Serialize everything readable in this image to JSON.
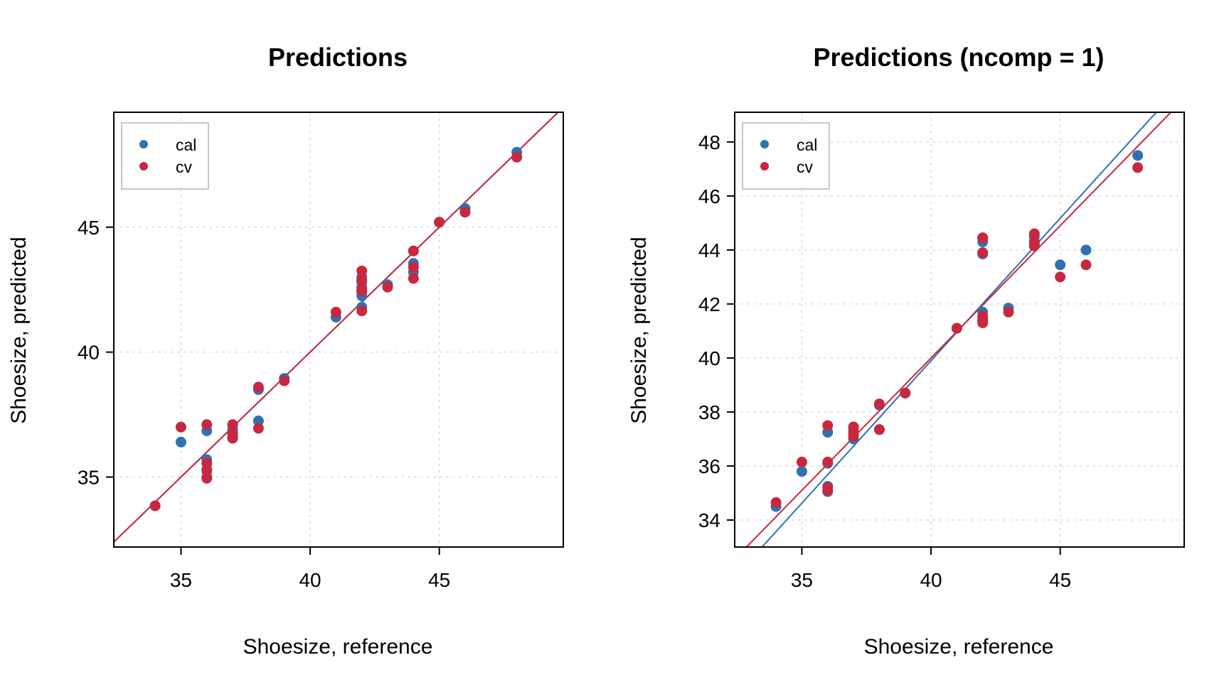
{
  "colors": {
    "cal": "#2f72b2",
    "cv": "#c8283f"
  },
  "chart_data": [
    {
      "type": "scatter",
      "title": "Predictions",
      "xlabel": "Shoesize, reference",
      "ylabel": "Shoesize, predicted",
      "xlim": [
        32.4,
        49.8
      ],
      "ylim": [
        32.2,
        49.6
      ],
      "xticks": [
        35,
        40,
        45
      ],
      "yticks": [
        35,
        40,
        45
      ],
      "grid": true,
      "legend": {
        "placement": "top-left",
        "entries": [
          "cal",
          "cv"
        ]
      },
      "series": [
        {
          "name": "cal",
          "x": [
            34,
            35,
            36,
            36,
            36,
            36,
            37,
            37,
            37,
            38,
            38,
            39,
            41,
            42,
            42,
            42,
            42,
            42,
            42,
            43,
            44,
            44,
            44,
            45,
            46,
            48
          ],
          "y": [
            33.85,
            36.4,
            36.85,
            35.7,
            35.3,
            35.0,
            36.9,
            36.8,
            36.6,
            37.25,
            38.5,
            38.95,
            41.4,
            42.8,
            42.6,
            42.25,
            41.8,
            42.4,
            43.0,
            42.7,
            43.55,
            43.2,
            44.05,
            45.2,
            45.75,
            48.0
          ],
          "fit": {
            "intercept": 0.0,
            "slope": 1.0
          }
        },
        {
          "name": "cv",
          "x": [
            34,
            35,
            36,
            36,
            36,
            36,
            37,
            37,
            37,
            38,
            38,
            39,
            41,
            42,
            42,
            42,
            42,
            42,
            42,
            43,
            44,
            44,
            44,
            45,
            46,
            48
          ],
          "y": [
            33.85,
            37.0,
            37.1,
            35.55,
            35.25,
            34.95,
            37.1,
            36.75,
            36.55,
            36.95,
            38.6,
            38.85,
            41.6,
            43.25,
            42.9,
            42.45,
            41.65,
            42.5,
            42.85,
            42.6,
            43.4,
            42.95,
            44.05,
            45.2,
            45.6,
            47.8
          ],
          "fit": {
            "intercept": 0.0,
            "slope": 1.0
          }
        }
      ]
    },
    {
      "type": "scatter",
      "title": "Predictions (ncomp = 1)",
      "xlabel": "Shoesize, reference",
      "ylabel": "Shoesize, predicted",
      "xlim": [
        32.4,
        49.8
      ],
      "ylim": [
        33.0,
        49.1
      ],
      "xticks": [
        35,
        40,
        45
      ],
      "yticks": [
        34,
        36,
        38,
        40,
        42,
        44,
        46,
        48
      ],
      "grid": true,
      "legend": {
        "placement": "top-left",
        "entries": [
          "cal",
          "cv"
        ]
      },
      "series": [
        {
          "name": "cal",
          "x": [
            34,
            35,
            36,
            36,
            36,
            36,
            37,
            37,
            37,
            38,
            38,
            39,
            41,
            42,
            42,
            42,
            42,
            42,
            42,
            43,
            44,
            44,
            44,
            45,
            46,
            48
          ],
          "y": [
            34.5,
            35.8,
            37.25,
            36.1,
            35.25,
            35.05,
            37.25,
            37.0,
            37.4,
            37.35,
            38.25,
            38.7,
            41.1,
            44.3,
            43.85,
            41.7,
            41.5,
            41.35,
            44.45,
            41.85,
            44.5,
            44.2,
            44.3,
            43.45,
            44.0,
            47.5
          ],
          "fit": {
            "intercept": -2.3,
            "slope": 1.055
          }
        },
        {
          "name": "cv",
          "x": [
            34,
            35,
            36,
            36,
            36,
            36,
            37,
            37,
            37,
            38,
            38,
            39,
            41,
            42,
            42,
            42,
            42,
            42,
            42,
            43,
            44,
            44,
            44,
            45,
            46,
            48
          ],
          "y": [
            34.65,
            36.15,
            37.5,
            36.15,
            35.2,
            35.1,
            37.45,
            37.25,
            37.1,
            37.35,
            38.3,
            38.7,
            41.1,
            44.45,
            43.9,
            41.55,
            41.3,
            41.4,
            44.45,
            41.7,
            44.6,
            44.15,
            44.3,
            43.0,
            43.45,
            47.05
          ],
          "fit": {
            "intercept": 0.8,
            "slope": 0.98
          }
        }
      ]
    }
  ]
}
